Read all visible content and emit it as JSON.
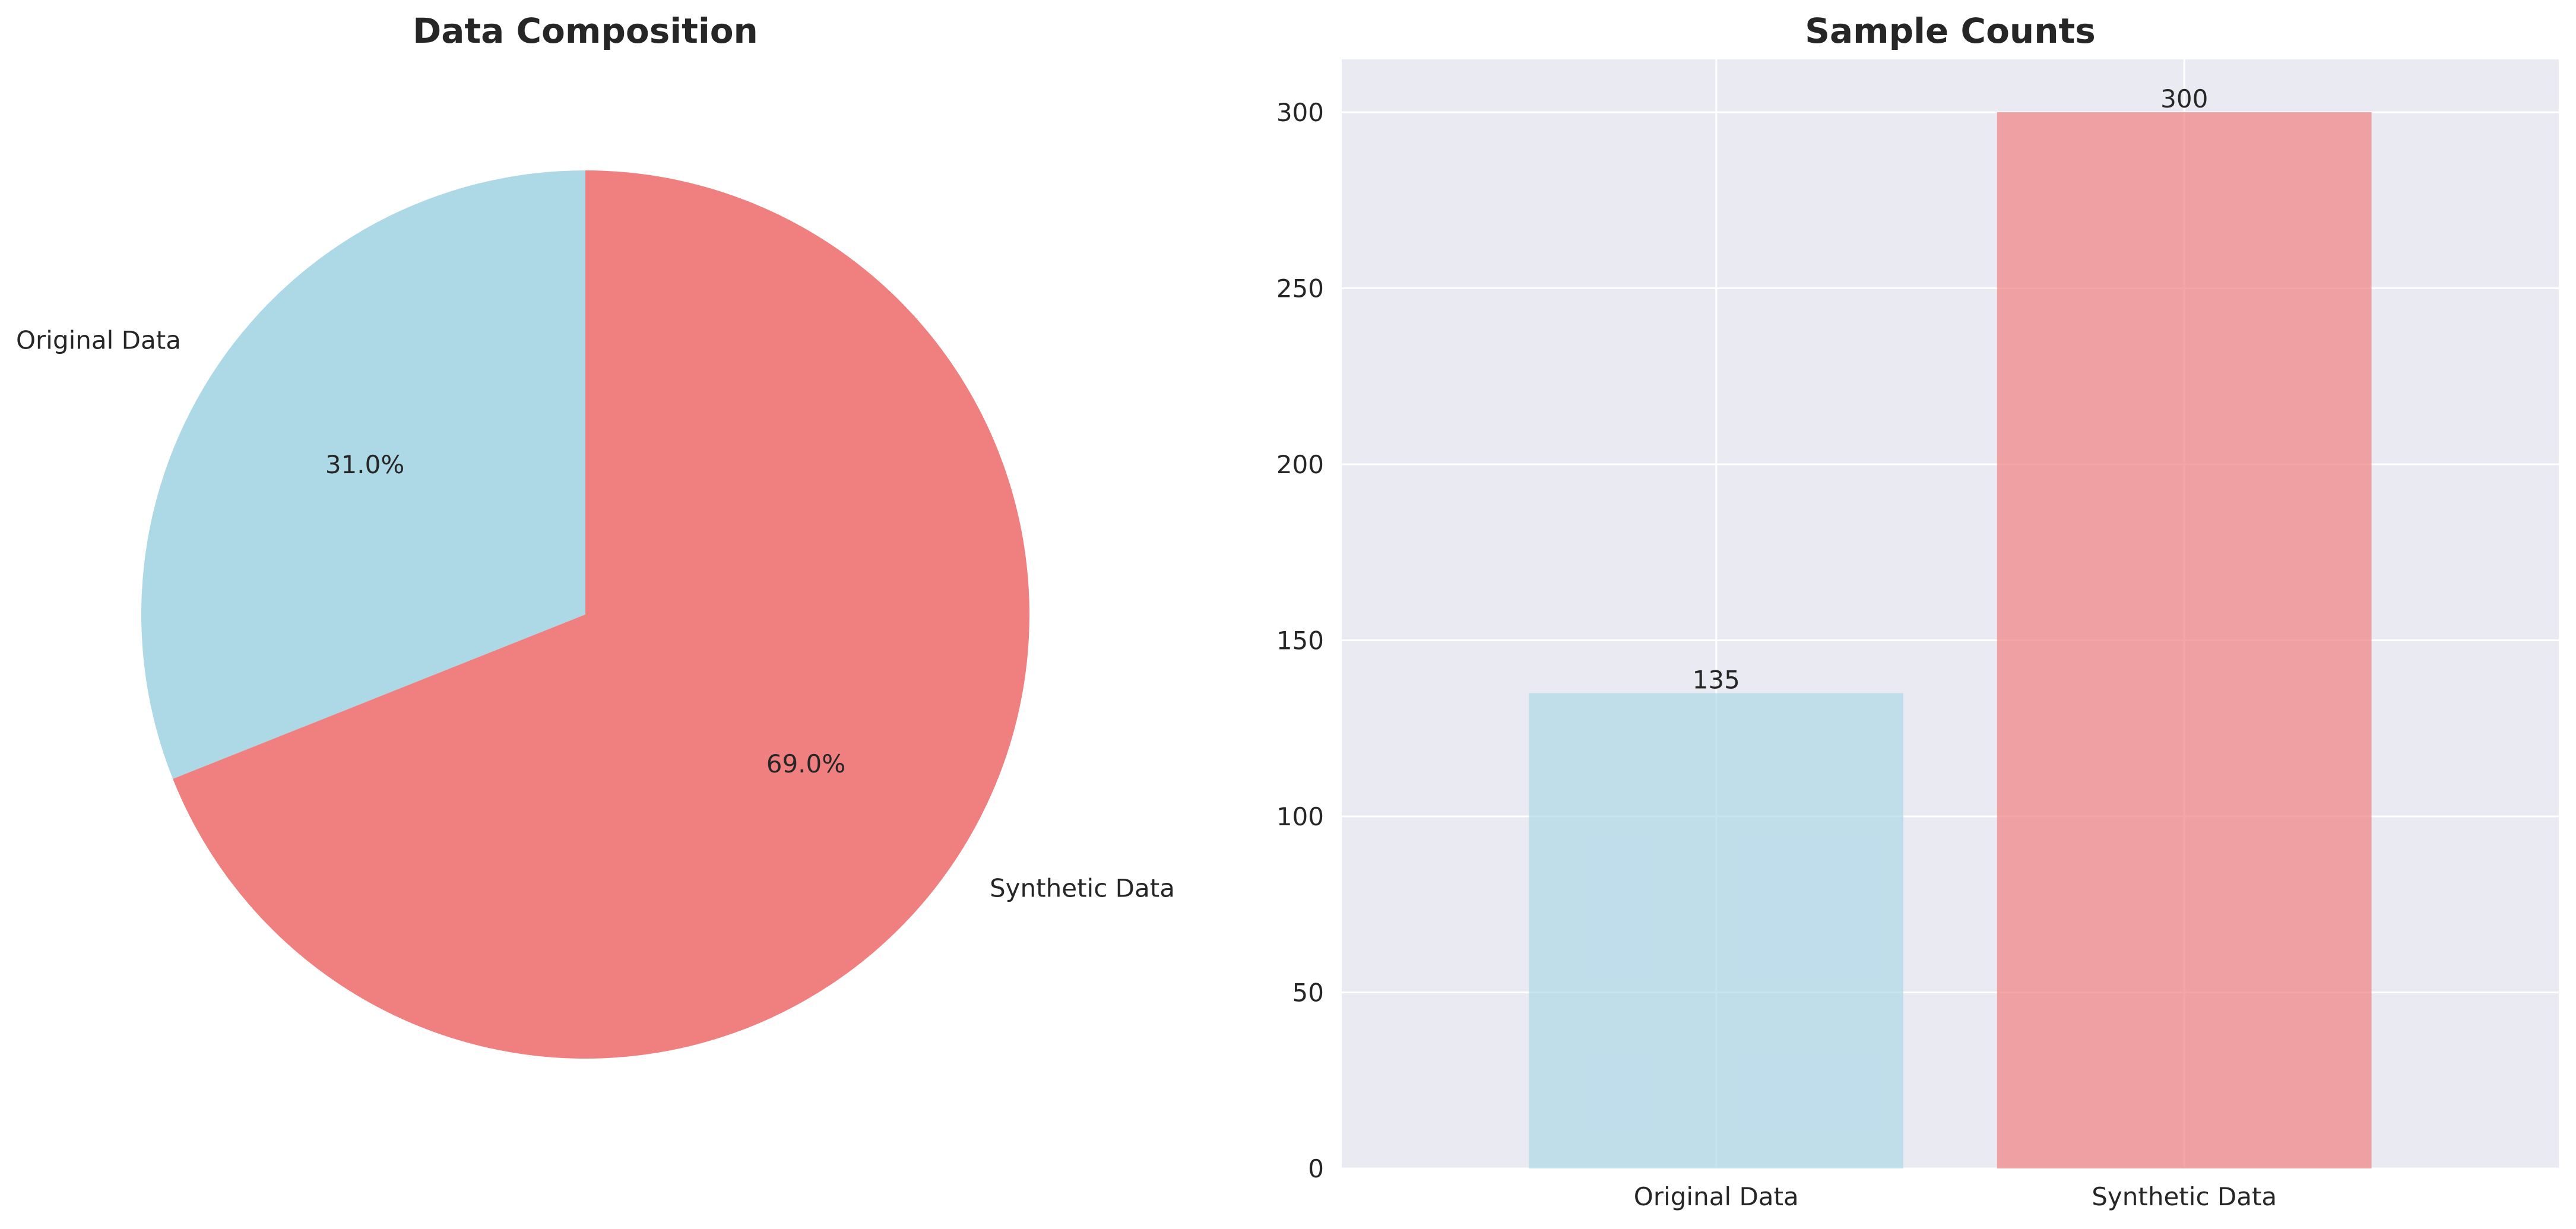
{
  "chart_data": [
    {
      "type": "pie",
      "title": "Data Composition",
      "labels": [
        "Original Data",
        "Synthetic Data"
      ],
      "values": [
        135,
        300
      ],
      "percent_labels": [
        "31.0%",
        "69.0%"
      ],
      "colors": [
        "#add8e6",
        "#f08080"
      ],
      "start_angle_deg": 90,
      "direction": "counterclockwise",
      "legend": "none"
    },
    {
      "type": "bar",
      "title": "Sample Counts",
      "categories": [
        "Original Data",
        "Synthetic Data"
      ],
      "values": [
        135,
        300
      ],
      "value_labels": [
        "135",
        "300"
      ],
      "colors": [
        "#add8e6",
        "#f08080"
      ],
      "bar_opacity": 0.7,
      "xlabel": "",
      "ylabel": "",
      "ylim": [
        0,
        315
      ],
      "yticks": [
        0,
        50,
        100,
        150,
        200,
        250,
        300
      ],
      "ytick_labels": [
        "0",
        "50",
        "100",
        "150",
        "200",
        "250",
        "300"
      ],
      "grid": true,
      "background": "#eaeaf2",
      "legend": "none"
    }
  ]
}
